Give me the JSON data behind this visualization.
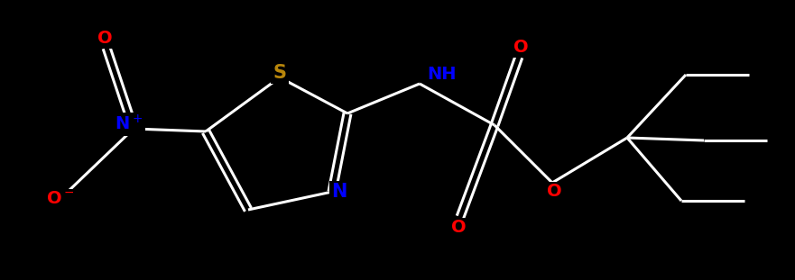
{
  "background_color": "#000000",
  "bond_color": "#ffffff",
  "bond_width": 2.2,
  "figsize": [
    8.81,
    3.11
  ],
  "dpi": 100,
  "colors": {
    "S": "#b8860b",
    "N": "#0000ff",
    "O": "#ff0000",
    "C": "#ffffff",
    "bond": "#ffffff"
  },
  "atoms": {
    "S_label": "S",
    "N_thiazole": "N",
    "N_no2": "N⁺",
    "O_top": "O",
    "O_bottom": "O⁻",
    "NH": "NH",
    "O_carbonyl": "O",
    "O_ester": "O",
    "O_lower": "O"
  }
}
